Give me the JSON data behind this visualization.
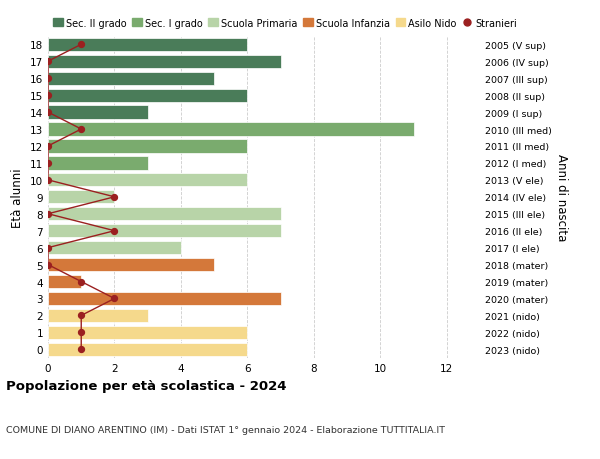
{
  "ages": [
    18,
    17,
    16,
    15,
    14,
    13,
    12,
    11,
    10,
    9,
    8,
    7,
    6,
    5,
    4,
    3,
    2,
    1,
    0
  ],
  "anni_nascita": [
    "2005 (V sup)",
    "2006 (IV sup)",
    "2007 (III sup)",
    "2008 (II sup)",
    "2009 (I sup)",
    "2010 (III med)",
    "2011 (II med)",
    "2012 (I med)",
    "2013 (V ele)",
    "2014 (IV ele)",
    "2015 (III ele)",
    "2016 (II ele)",
    "2017 (I ele)",
    "2018 (mater)",
    "2019 (mater)",
    "2020 (mater)",
    "2021 (nido)",
    "2022 (nido)",
    "2023 (nido)"
  ],
  "bar_values": [
    6,
    7,
    5,
    6,
    3,
    11,
    6,
    3,
    6,
    2,
    7,
    7,
    4,
    5,
    1,
    7,
    3,
    6,
    6
  ],
  "bar_colors": [
    "#4a7c59",
    "#4a7c59",
    "#4a7c59",
    "#4a7c59",
    "#4a7c59",
    "#7aab6e",
    "#7aab6e",
    "#7aab6e",
    "#b8d4a8",
    "#b8d4a8",
    "#b8d4a8",
    "#b8d4a8",
    "#b8d4a8",
    "#d4783a",
    "#d4783a",
    "#d4783a",
    "#f5d98c",
    "#f5d98c",
    "#f5d98c"
  ],
  "stranieri_values": [
    1,
    0,
    0,
    0,
    0,
    1,
    0,
    0,
    0,
    2,
    0,
    2,
    0,
    0,
    1,
    2,
    1,
    1,
    1
  ],
  "stranieri_color": "#9b2020",
  "legend_labels": [
    "Sec. II grado",
    "Sec. I grado",
    "Scuola Primaria",
    "Scuola Infanzia",
    "Asilo Nido",
    "Stranieri"
  ],
  "legend_colors": [
    "#4a7c59",
    "#7aab6e",
    "#b8d4a8",
    "#d4783a",
    "#f5d98c",
    "#9b2020"
  ],
  "ylabel_label": "Età alunni",
  "ylabel2_label": "Anni di nascita",
  "title": "Popolazione per età scolastica - 2024",
  "subtitle": "COMUNE DI DIANO ARENTINO (IM) - Dati ISTAT 1° gennaio 2024 - Elaborazione TUTTITALIA.IT",
  "xlim": [
    0,
    13
  ],
  "background_color": "#ffffff",
  "grid_color": "#cccccc"
}
